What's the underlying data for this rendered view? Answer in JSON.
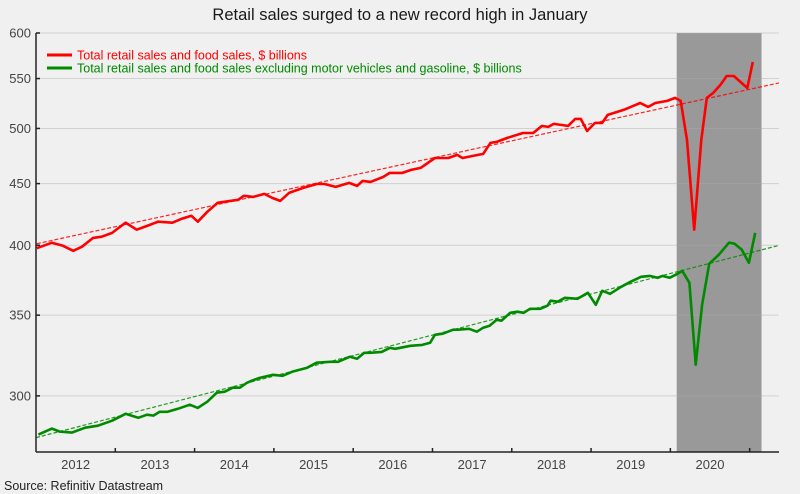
{
  "chart_data": {
    "type": "line",
    "title": "Retail sales surged to a new record high in January",
    "xlabel": "",
    "ylabel": "",
    "y_scale": "log",
    "ylim": [
      269.5,
      600
    ],
    "xlim": [
      2012.0,
      2021.37
    ],
    "y_ticks": [
      300,
      350,
      400,
      450,
      500,
      550,
      600
    ],
    "x_tick_labels": [
      "2012",
      "2013",
      "2014",
      "2015",
      "2016",
      "2017",
      "2018",
      "2019",
      "2020"
    ],
    "grid": true,
    "legend_position": "top-left",
    "shaded_region": {
      "start": 2020.08,
      "end": 2021.15,
      "color": "#999999"
    },
    "series": [
      {
        "name": "Total retail sales and food sales, $ billions",
        "color": "#ff0000",
        "points": [
          [
            2012.01,
            397.8
          ],
          [
            2012.2,
            402.0
          ],
          [
            2012.34,
            399.6
          ],
          [
            2012.47,
            395.8
          ],
          [
            2012.58,
            398.9
          ],
          [
            2012.72,
            405.7
          ],
          [
            2012.83,
            406.6
          ],
          [
            2012.96,
            409.6
          ],
          [
            2013.03,
            412.9
          ],
          [
            2013.13,
            417.6
          ],
          [
            2013.27,
            412.1
          ],
          [
            2013.41,
            415.3
          ],
          [
            2013.54,
            418.4
          ],
          [
            2013.72,
            417.6
          ],
          [
            2013.84,
            420.8
          ],
          [
            2013.96,
            423.2
          ],
          [
            2014.04,
            418.4
          ],
          [
            2014.16,
            426.4
          ],
          [
            2014.29,
            433.8
          ],
          [
            2014.45,
            435.4
          ],
          [
            2014.55,
            436.3
          ],
          [
            2014.62,
            439.6
          ],
          [
            2014.74,
            438.7
          ],
          [
            2014.88,
            441.2
          ],
          [
            2014.98,
            437.9
          ],
          [
            2015.08,
            435.4
          ],
          [
            2015.19,
            442.1
          ],
          [
            2015.37,
            446.3
          ],
          [
            2015.54,
            449.7
          ],
          [
            2015.64,
            449.7
          ],
          [
            2015.78,
            447.2
          ],
          [
            2015.95,
            450.6
          ],
          [
            2016.05,
            448.0
          ],
          [
            2016.12,
            452.3
          ],
          [
            2016.22,
            451.5
          ],
          [
            2016.38,
            455.8
          ],
          [
            2016.46,
            459.3
          ],
          [
            2016.62,
            459.3
          ],
          [
            2016.73,
            461.9
          ],
          [
            2016.85,
            463.7
          ],
          [
            2017.03,
            472.6
          ],
          [
            2017.2,
            472.6
          ],
          [
            2017.31,
            475.4
          ],
          [
            2017.38,
            472.6
          ],
          [
            2017.51,
            474.5
          ],
          [
            2017.64,
            476.3
          ],
          [
            2017.73,
            486.4
          ],
          [
            2017.81,
            487.3
          ],
          [
            2017.94,
            491.0
          ],
          [
            2018.14,
            495.7
          ],
          [
            2018.27,
            495.7
          ],
          [
            2018.38,
            502.4
          ],
          [
            2018.46,
            501.5
          ],
          [
            2018.53,
            504.4
          ],
          [
            2018.71,
            502.4
          ],
          [
            2018.8,
            509.2
          ],
          [
            2018.87,
            509.2
          ],
          [
            2018.95,
            497.6
          ],
          [
            2019.05,
            505.3
          ],
          [
            2019.14,
            505.3
          ],
          [
            2019.21,
            513.1
          ],
          [
            2019.41,
            518.0
          ],
          [
            2019.62,
            524.9
          ],
          [
            2019.72,
            521.0
          ],
          [
            2019.81,
            524.9
          ],
          [
            2019.96,
            527.0
          ],
          [
            2020.06,
            530.0
          ],
          [
            2020.13,
            527.0
          ],
          [
            2020.21,
            489.2
          ],
          [
            2020.3,
            412.1
          ],
          [
            2020.39,
            489.2
          ],
          [
            2020.46,
            530.0
          ],
          [
            2020.54,
            535.1
          ],
          [
            2020.63,
            543.3
          ],
          [
            2020.71,
            552.7
          ],
          [
            2020.8,
            552.7
          ],
          [
            2020.97,
            540.2
          ],
          [
            2021.04,
            567.7
          ]
        ],
        "trend": {
          "style": "dashed",
          "points": [
            [
              2012.01,
              401.2
            ],
            [
              2021.37,
              545.4
            ]
          ]
        }
      },
      {
        "name": "Total retail sales and food sales excluding motor vehicles and gasoline, $ billions",
        "color": "#008a00",
        "points": [
          [
            2012.03,
            278.6
          ],
          [
            2012.2,
            281.8
          ],
          [
            2012.3,
            280.2
          ],
          [
            2012.45,
            279.7
          ],
          [
            2012.62,
            282.3
          ],
          [
            2012.78,
            283.4
          ],
          [
            2012.96,
            286.1
          ],
          [
            2013.13,
            289.9
          ],
          [
            2013.29,
            287.7
          ],
          [
            2013.4,
            289.4
          ],
          [
            2013.48,
            288.9
          ],
          [
            2013.56,
            291.0
          ],
          [
            2013.66,
            291.0
          ],
          [
            2013.79,
            292.7
          ],
          [
            2013.94,
            295.0
          ],
          [
            2014.04,
            293.2
          ],
          [
            2014.16,
            296.7
          ],
          [
            2014.28,
            301.8
          ],
          [
            2014.38,
            302.4
          ],
          [
            2014.48,
            304.7
          ],
          [
            2014.57,
            304.7
          ],
          [
            2014.66,
            307.6
          ],
          [
            2014.72,
            308.8
          ],
          [
            2014.82,
            310.5
          ],
          [
            2014.99,
            312.3
          ],
          [
            2015.11,
            311.7
          ],
          [
            2015.23,
            314.1
          ],
          [
            2015.42,
            316.6
          ],
          [
            2015.54,
            319.6
          ],
          [
            2015.71,
            320.2
          ],
          [
            2015.81,
            320.2
          ],
          [
            2015.96,
            323.3
          ],
          [
            2016.05,
            322.1
          ],
          [
            2016.14,
            325.7
          ],
          [
            2016.21,
            325.7
          ],
          [
            2016.36,
            326.3
          ],
          [
            2016.46,
            328.8
          ],
          [
            2016.53,
            328.2
          ],
          [
            2016.72,
            330.1
          ],
          [
            2016.87,
            330.7
          ],
          [
            2016.97,
            332.0
          ],
          [
            2017.03,
            337.1
          ],
          [
            2017.13,
            337.8
          ],
          [
            2017.26,
            340.4
          ],
          [
            2017.32,
            340.4
          ],
          [
            2017.46,
            341.0
          ],
          [
            2017.56,
            339.1
          ],
          [
            2017.64,
            341.7
          ],
          [
            2017.72,
            343.0
          ],
          [
            2017.81,
            346.9
          ],
          [
            2017.87,
            346.3
          ],
          [
            2017.98,
            351.6
          ],
          [
            2018.07,
            352.3
          ],
          [
            2018.15,
            351.6
          ],
          [
            2018.23,
            354.3
          ],
          [
            2018.36,
            354.3
          ],
          [
            2018.45,
            356.4
          ],
          [
            2018.49,
            359.8
          ],
          [
            2018.58,
            359.1
          ],
          [
            2018.67,
            361.8
          ],
          [
            2018.83,
            361.1
          ],
          [
            2018.96,
            365.3
          ],
          [
            2019.06,
            357.0
          ],
          [
            2019.14,
            366.7
          ],
          [
            2019.24,
            364.6
          ],
          [
            2019.38,
            369.5
          ],
          [
            2019.5,
            373.1
          ],
          [
            2019.63,
            376.6
          ],
          [
            2019.74,
            377.3
          ],
          [
            2019.84,
            375.9
          ],
          [
            2019.9,
            377.3
          ],
          [
            2019.99,
            375.9
          ],
          [
            2020.09,
            378.8
          ],
          [
            2020.15,
            380.9
          ],
          [
            2020.24,
            372.3
          ],
          [
            2020.32,
            318.4
          ],
          [
            2020.4,
            357.0
          ],
          [
            2020.49,
            386.1
          ],
          [
            2020.61,
            392.8
          ],
          [
            2020.74,
            402.0
          ],
          [
            2020.81,
            401.2
          ],
          [
            2020.9,
            396.7
          ],
          [
            2020.99,
            386.8
          ],
          [
            2021.07,
            409.6
          ]
        ],
        "trend": {
          "style": "dashed",
          "points": [
            [
              2012.0,
              277.0
            ],
            [
              2021.35,
              399.6
            ]
          ]
        }
      }
    ]
  },
  "source": "Source: Refinitiv Datastream"
}
